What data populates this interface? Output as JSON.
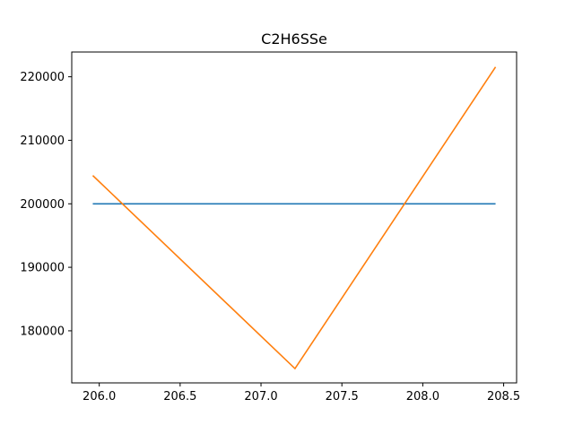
{
  "chart_data": {
    "type": "line",
    "title": "C2H6SSe",
    "xlabel": "",
    "ylabel": "",
    "xlim": [
      205.83,
      208.58
    ],
    "ylim": [
      171800,
      223900
    ],
    "x_ticks": [
      206.0,
      206.5,
      207.0,
      207.5,
      208.0,
      208.5
    ],
    "x_tick_labels": [
      "206.0",
      "206.5",
      "207.0",
      "207.5",
      "208.0",
      "208.5"
    ],
    "y_ticks": [
      180000,
      190000,
      200000,
      210000,
      220000
    ],
    "y_tick_labels": [
      "180000",
      "190000",
      "200000",
      "210000",
      "220000"
    ],
    "grid": false,
    "series": [
      {
        "color": "#1f77b4",
        "x": [
          205.96,
          208.45
        ],
        "y": [
          200000,
          200000
        ]
      },
      {
        "color": "#ff7f0e",
        "x": [
          205.96,
          207.21,
          208.45
        ],
        "y": [
          204450,
          174050,
          221550
        ]
      }
    ]
  }
}
